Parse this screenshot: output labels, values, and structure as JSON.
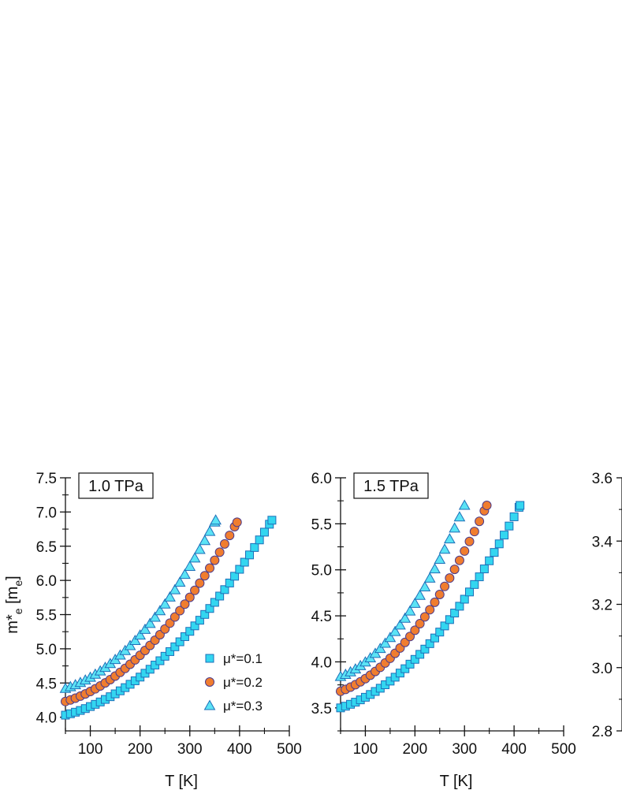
{
  "colors": {
    "square_fill": "#33D6F0",
    "square_stroke": "#1E6FB8",
    "circle_fill": "#F07D2F",
    "circle_stroke": "#4B3A8C",
    "triangle_fill": "#5BE3F5",
    "triangle_stroke": "#1E6FB8",
    "axis": "#111111"
  },
  "chart_data": [
    {
      "type": "scatter",
      "panel_label": "1.0 TPa",
      "xlabel": "T [K]",
      "ylabel_main": "m*",
      "ylabel_sub1": "e",
      "ylabel_bracket": " [m",
      "ylabel_sub2": "e",
      "ylabel_close": "]",
      "xlim": [
        50,
        500
      ],
      "ylim": [
        3.8,
        7.5
      ],
      "xticks": [
        100,
        200,
        300,
        400,
        500
      ],
      "yticks": [
        4.0,
        4.5,
        5.0,
        5.5,
        6.0,
        6.5,
        7.0,
        7.5
      ],
      "xtick_labels": [
        "100",
        "200",
        "300",
        "400",
        "500"
      ],
      "ytick_labels": [
        "4.0",
        "4.5",
        "5.0",
        "5.5",
        "6.0",
        "6.5",
        "7.0",
        "7.5"
      ],
      "legend": [
        "μ*=0.1",
        "μ*=0.2",
        "μ*=0.3"
      ],
      "series": [
        {
          "marker": "square",
          "tmax": 465,
          "y0": 4.03,
          "ymax": 6.88
        },
        {
          "marker": "circle",
          "tmax": 395,
          "y0": 4.23,
          "ymax": 6.85
        },
        {
          "marker": "triangle",
          "tmax": 352,
          "y0": 4.42,
          "ymax": 6.88
        }
      ]
    },
    {
      "type": "scatter",
      "panel_label": "1.5 TPa",
      "xlabel": "T [K]",
      "xlim": [
        50,
        500
      ],
      "ylim": [
        3.25,
        6.0
      ],
      "xticks": [
        100,
        200,
        300,
        400,
        500
      ],
      "yticks": [
        3.5,
        4.0,
        4.5,
        5.0,
        5.5,
        6.0
      ],
      "xtick_labels": [
        "100",
        "200",
        "300",
        "400",
        "500"
      ],
      "ytick_labels": [
        "3.5",
        "4.0",
        "4.5",
        "5.0",
        "5.5",
        "6.0"
      ],
      "series": [
        {
          "marker": "square",
          "tmax": 412,
          "y0": 3.5,
          "ymax": 5.7
        },
        {
          "marker": "circle",
          "tmax": 345,
          "y0": 3.68,
          "ymax": 5.7
        },
        {
          "marker": "triangle",
          "tmax": 300,
          "y0": 3.84,
          "ymax": 5.7
        }
      ]
    },
    {
      "type": "scatter",
      "ylim": [
        2.8,
        3.6
      ],
      "yticks": [
        2.8,
        3.0,
        3.2,
        3.4,
        3.6
      ],
      "ytick_labels": [
        "2.8",
        "3.0",
        "3.2",
        "3.4",
        "3.6"
      ]
    }
  ]
}
